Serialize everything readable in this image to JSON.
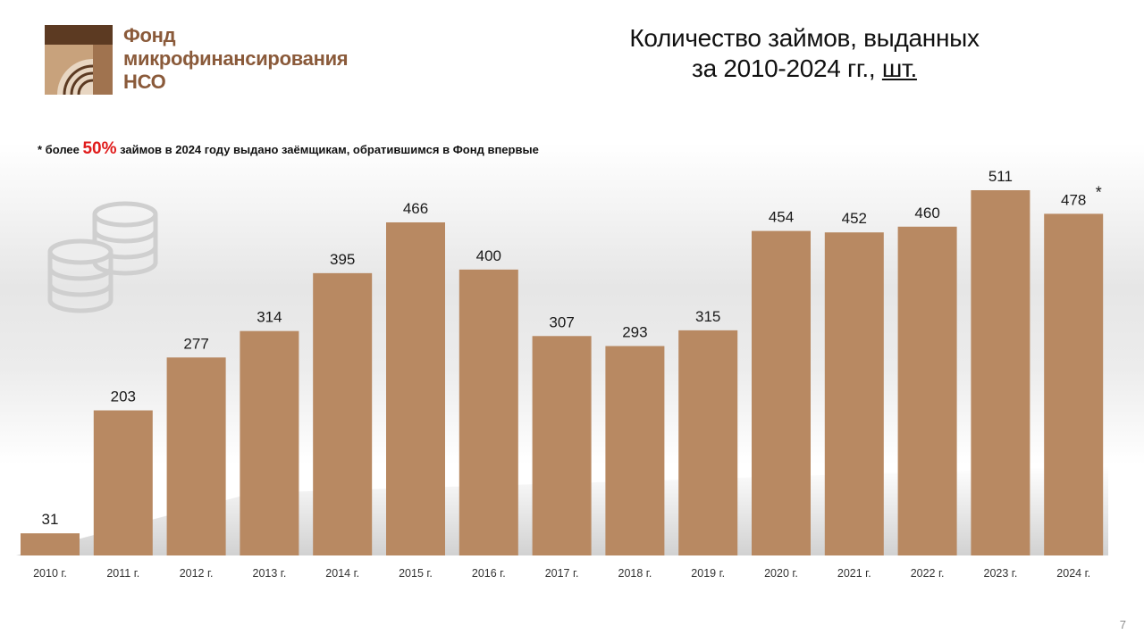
{
  "organization": {
    "name_line1": "Фонд",
    "name_line2": "микрофинансирования",
    "name_line3": "НСО"
  },
  "header": {
    "title_line1": "Количество займов, выданных",
    "title_line2_prefix": "за 2010-2024 гг., ",
    "title_line2_unit": "шт."
  },
  "footnote": {
    "prefix": "* более ",
    "highlight": "50%",
    "suffix": " займов в 2024 году выдано заёмщикам, обратившимся в Фонд впервые"
  },
  "page_number": "7",
  "colors": {
    "bar": "#b88962",
    "highlight": "#e01b1b",
    "brand_brown": "#8a5a3a"
  },
  "icons": {
    "logo": "fund-logo-icon",
    "coins": "coins-icon"
  },
  "chart_data": {
    "type": "bar",
    "title": "",
    "xlabel": "",
    "ylabel": "",
    "categories": [
      "2010 г.",
      "2011 г.",
      "2012 г.",
      "2013 г.",
      "2014 г.",
      "2015 г.",
      "2016 г.",
      "2017 г.",
      "2018 г.",
      "2019 г.",
      "2020 г.",
      "2021 г.",
      "2022 г.",
      "2023 г.",
      "2024 г."
    ],
    "values": [
      31,
      203,
      277,
      314,
      395,
      466,
      400,
      307,
      293,
      315,
      454,
      452,
      460,
      511,
      478
    ],
    "data_labels": [
      "31",
      "203",
      "277",
      "314",
      "395",
      "466",
      "400",
      "307",
      "293",
      "315",
      "454",
      "452",
      "460",
      "511",
      "478"
    ],
    "annotations": [
      {
        "category": "2024 г.",
        "text": "*"
      }
    ],
    "ylim": [
      0,
      511
    ],
    "grid": false,
    "legend": "none"
  }
}
